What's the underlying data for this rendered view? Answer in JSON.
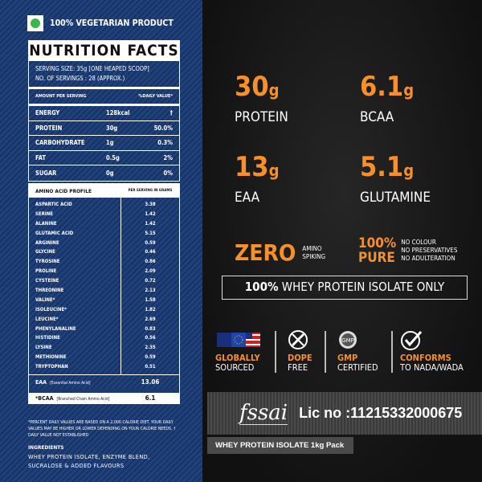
{
  "vegetarian": "100% VEGETARIAN PRODUCT",
  "nutrition": {
    "title": "NUTRITION FACTS",
    "serving_size": "SERVING SIZE: 35g  [ONE HEAPED SCOOP]",
    "servings": "NO. OF SERVINGS : 28 (APPROX.)",
    "col_amount": "AMOUNT PER SERVING",
    "col_dv": "%DAILY VALUE*",
    "rows": [
      {
        "name": "ENERGY",
        "amount": "128kcal",
        "dv": "†"
      },
      {
        "name": "PROTEIN",
        "amount": "30g",
        "dv": "50.0%"
      },
      {
        "name": "CARBOHYDRATE",
        "amount": "1g",
        "dv": "0.3%"
      },
      {
        "name": "FAT",
        "amount": "0.5g",
        "dv": "2%"
      },
      {
        "name": "SUGAR",
        "amount": "0g",
        "dv": "0%"
      }
    ]
  },
  "amino": {
    "title": "AMINO ACID PROFILE",
    "col": "PER SERVING IN GRAMS",
    "items": [
      {
        "name": "ASPARTIC ACID",
        "value": "3.38"
      },
      {
        "name": "SERINE",
        "value": "1.42"
      },
      {
        "name": "ALANINE",
        "value": "1.42"
      },
      {
        "name": "GLUTAMIC ACID",
        "value": "5.15"
      },
      {
        "name": "ARGININE",
        "value": "0.59"
      },
      {
        "name": "GLYCINE",
        "value": "0.46"
      },
      {
        "name": "TYROSINE",
        "value": "0.86"
      },
      {
        "name": "PROLINE",
        "value": "2.09"
      },
      {
        "name": "CYSTEINE",
        "value": "0.72"
      },
      {
        "name": "THREONINE",
        "value": "2.13"
      },
      {
        "name": "VALINE*",
        "value": "1.58"
      },
      {
        "name": "ISOLEUCINE*",
        "value": "1.82"
      },
      {
        "name": "LEUCINE*",
        "value": "2.69"
      },
      {
        "name": "PHENYLANALINE",
        "value": "0.83"
      },
      {
        "name": "HISTIDINE",
        "value": "0.56"
      },
      {
        "name": "LYSINE",
        "value": "2.35"
      },
      {
        "name": "METHIONINE",
        "value": "0.59"
      },
      {
        "name": "TRYPTOPHAN",
        "value": "0.51"
      }
    ],
    "eaa": {
      "label": "EAA",
      "desc": "[Essential Amino Acid]",
      "value": "13.06"
    },
    "bcaa": {
      "label": "*BCAA",
      "desc": "[Branched Chain Amino Acid]",
      "value": "6.1"
    }
  },
  "footnote": "*PERCENT DAILY VALUES ARE BASED ON A 2,000 CALORIE DIET. YOUR DAILY VALUES MAY BE HIGHER OR LOWER DEPENDING ON YOUR CALORIE NEEDS.  † DAILY VALUE NOT ESTABLISHED",
  "ingredients": {
    "title": "INGREDIENTS",
    "text": "WHEY PROTEIN ISOLATE, ENZYME BLEND, SUCRALOSE & ADDED FLAVOURS"
  },
  "stats": [
    {
      "num": "30",
      "unit": "g",
      "label": "PROTEIN"
    },
    {
      "num": "6.1",
      "unit": "g",
      "label": "BCAA"
    },
    {
      "num": "13",
      "unit": "g",
      "label": "EAA"
    },
    {
      "num": "5.1",
      "unit": "g",
      "label": "GLUTAMINE"
    }
  ],
  "zero": {
    "big": "ZERO",
    "l1": "AMINO",
    "l2": "SPIKING"
  },
  "pure": {
    "l1": "100%",
    "l2": "PURE",
    "claims": [
      "NO COLOUR",
      "NO PRESERVATIVES",
      "NO ADULTERATION"
    ]
  },
  "isolate_only": {
    "bold": "100%",
    "rest": " WHEY PROTEIN ISOLATE ONLY"
  },
  "badges": [
    {
      "icon": "flags-icon",
      "top": "GLOBALLY",
      "bottom": "SOURCED"
    },
    {
      "icon": "no-syringe-icon",
      "top": "DOPE",
      "bottom": "FREE"
    },
    {
      "icon": "gmp-seal-icon",
      "top": "GMP",
      "bottom": "CERTIFIED"
    },
    {
      "icon": "checkmark-icon",
      "top": "CONFORMS",
      "bottom": "TO NADA/WADA"
    }
  ],
  "fssai": {
    "logo": "fssai",
    "license": "Lic no :11215332000675"
  },
  "pack": "WHEY PROTEIN ISOLATE 1kg Pack",
  "colors": {
    "accent": "#f7902a",
    "denim": "#1f3f78",
    "dark": "#141414"
  }
}
